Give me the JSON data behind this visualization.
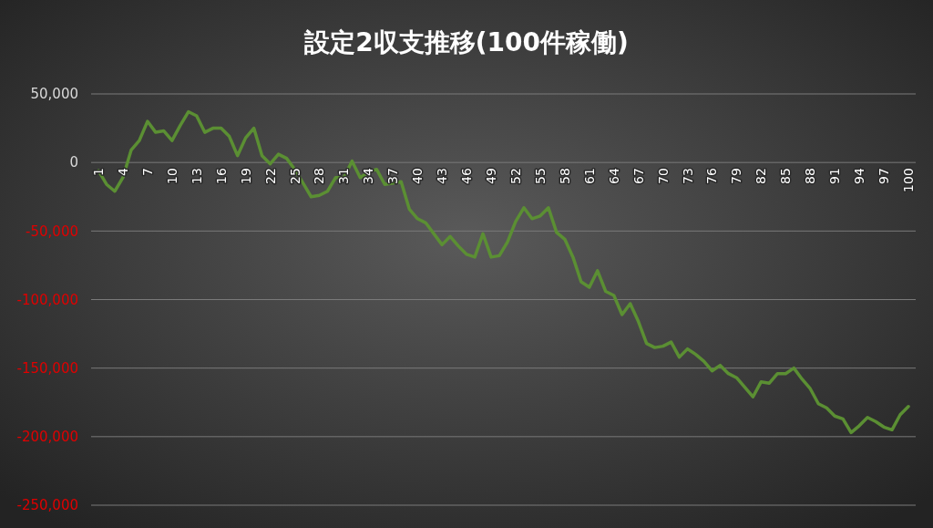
{
  "chart_data": {
    "type": "line",
    "title": "設定2収支推移(100件稼働)",
    "categories": [
      "1",
      null,
      null,
      "4",
      null,
      null,
      "7",
      null,
      null,
      "10",
      null,
      null,
      "13",
      null,
      null,
      "16",
      null,
      null,
      "19",
      null,
      null,
      "22",
      null,
      null,
      "25",
      null,
      null,
      "28",
      null,
      null,
      "31",
      null,
      null,
      "34",
      null,
      null,
      "37",
      null,
      null,
      "40",
      null,
      null,
      "43",
      null,
      null,
      "46",
      null,
      null,
      "49",
      null,
      null,
      "52",
      null,
      null,
      "55",
      null,
      null,
      "58",
      null,
      null,
      "61",
      null,
      null,
      "64",
      null,
      null,
      "67",
      null,
      null,
      "70",
      null,
      null,
      "73",
      null,
      null,
      "76",
      null,
      null,
      "79",
      null,
      null,
      "82",
      null,
      null,
      "85",
      null,
      null,
      "88",
      null,
      null,
      "91",
      null,
      null,
      "94",
      null,
      null,
      "97",
      null,
      null,
      "100"
    ],
    "series": [
      {
        "color": "#5b8f33",
        "values": [
          -6000,
          -16000,
          -21000,
          -11000,
          9000,
          16000,
          30000,
          22000,
          23000,
          16000,
          27000,
          37000,
          34000,
          22000,
          25000,
          25000,
          19000,
          5000,
          18000,
          25000,
          5000,
          -1000,
          6000,
          3000,
          -5000,
          -15000,
          -25000,
          -24000,
          -21000,
          -11000,
          -11000,
          1000,
          -11000,
          -7000,
          -5000,
          -16000,
          -15000,
          -14000,
          -34000,
          -41000,
          -44000,
          -52000,
          -60000,
          -54000,
          -61000,
          -67000,
          -69000,
          -52000,
          -69000,
          -68000,
          -58000,
          -43000,
          -33000,
          -41000,
          -39000,
          -33000,
          -51000,
          -56000,
          -69000,
          -87000,
          -91000,
          -79000,
          -94000,
          -97000,
          -111000,
          -103000,
          -116000,
          -132000,
          -135000,
          -134000,
          -131000,
          -142000,
          -136000,
          -140000,
          -145000,
          -152000,
          -148000,
          -154000,
          -157000,
          -164000,
          -171000,
          -160000,
          -161000,
          -154000,
          -154000,
          -150000,
          -158000,
          -165000,
          -176000,
          -179000,
          -185000,
          -187000,
          -197000,
          -192000,
          -186000,
          -189000,
          -193000,
          -195000,
          -184000,
          -178000
        ]
      }
    ],
    "ylim": [
      -250000,
      50000
    ],
    "yticks": [
      {
        "value": 50000,
        "label": "50,000"
      },
      {
        "value": 0,
        "label": "0"
      },
      {
        "value": -50000,
        "label": "-50,000"
      },
      {
        "value": -100000,
        "label": "-100,000"
      },
      {
        "value": -150000,
        "label": "-150,000"
      },
      {
        "value": -200000,
        "label": "-200,000"
      },
      {
        "value": -250000,
        "label": "-250,000"
      }
    ],
    "grid": "y",
    "marker": "none",
    "line_style": "solid"
  }
}
